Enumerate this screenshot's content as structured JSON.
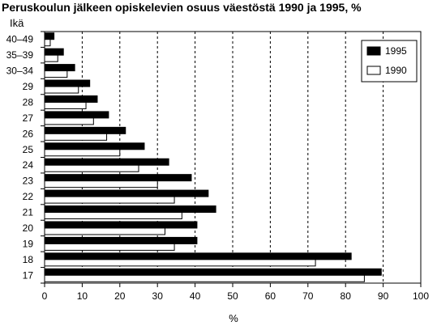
{
  "chart_data": {
    "type": "bar",
    "orientation": "horizontal",
    "title": "Peruskoulun jälkeen opiskelevien osuus väestöstä 1990 ja 1995, %",
    "ylabel": "Ikä",
    "xlabel": "%",
    "xlim": [
      0,
      100
    ],
    "xticks": [
      0,
      10,
      20,
      30,
      40,
      50,
      60,
      70,
      80,
      90,
      100
    ],
    "grid": "vertical dashed",
    "legend_position": "top-right",
    "categories": [
      "40–49",
      "35–39",
      "30–34",
      "29",
      "28",
      "27",
      "26",
      "25",
      "24",
      "23",
      "22",
      "21",
      "20",
      "19",
      "18",
      "17"
    ],
    "series": [
      {
        "name": "1995",
        "color": "#000000",
        "values": [
          2.5,
          5,
          8,
          12,
          14,
          17,
          21.5,
          26.5,
          33,
          39,
          43.5,
          45.5,
          40.5,
          40.5,
          81.5,
          89.5
        ]
      },
      {
        "name": "1990",
        "color": "#ffffff",
        "values": [
          1.5,
          3.5,
          6,
          9,
          11,
          13,
          16.5,
          20,
          25,
          30,
          34.5,
          36.5,
          32,
          34.5,
          72,
          85
        ]
      }
    ]
  }
}
